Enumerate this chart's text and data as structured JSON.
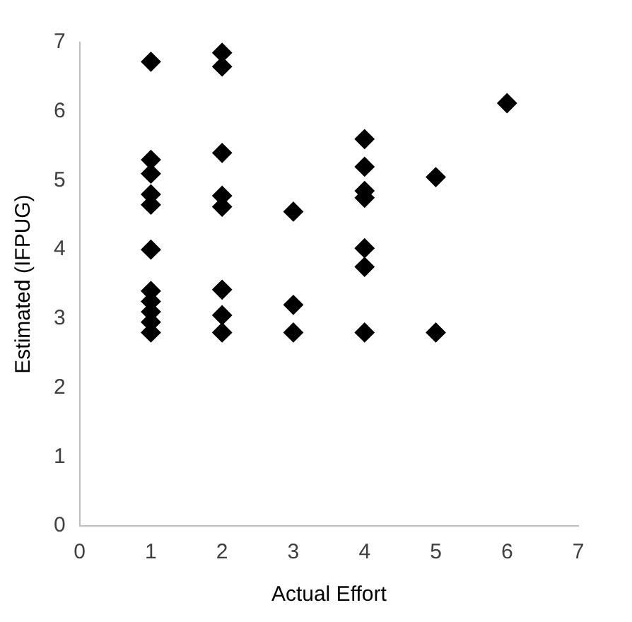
{
  "chart_data": {
    "type": "scatter",
    "xlabel": "Actual Effort",
    "ylabel": "Estimated (IFPUG)",
    "series": [
      {
        "color": "#000000",
        "x": [
          1,
          1,
          1,
          1,
          1,
          1,
          1,
          1,
          1,
          1,
          1,
          2,
          2,
          2,
          2,
          2,
          2,
          2,
          2,
          3,
          3,
          3,
          4,
          4,
          4,
          4,
          4,
          4,
          4,
          5,
          5,
          6
        ],
        "values": [
          6.72,
          5.3,
          5.1,
          4.8,
          4.65,
          4.0,
          3.4,
          3.25,
          3.1,
          2.95,
          2.8,
          6.85,
          6.65,
          5.4,
          4.78,
          4.62,
          3.42,
          3.05,
          2.8,
          4.55,
          3.2,
          2.8,
          5.6,
          5.2,
          4.85,
          4.75,
          4.02,
          3.75,
          2.8,
          5.05,
          2.8,
          6.12
        ]
      }
    ],
    "xlim": [
      0,
      7
    ],
    "xticks": [
      0,
      1,
      2,
      3,
      4,
      5,
      6,
      7
    ],
    "ylim": [
      0,
      7
    ],
    "yticks": [
      0,
      1,
      2,
      3,
      4,
      5,
      6,
      7
    ],
    "grid": false,
    "legend": false,
    "marker": "diamond"
  }
}
